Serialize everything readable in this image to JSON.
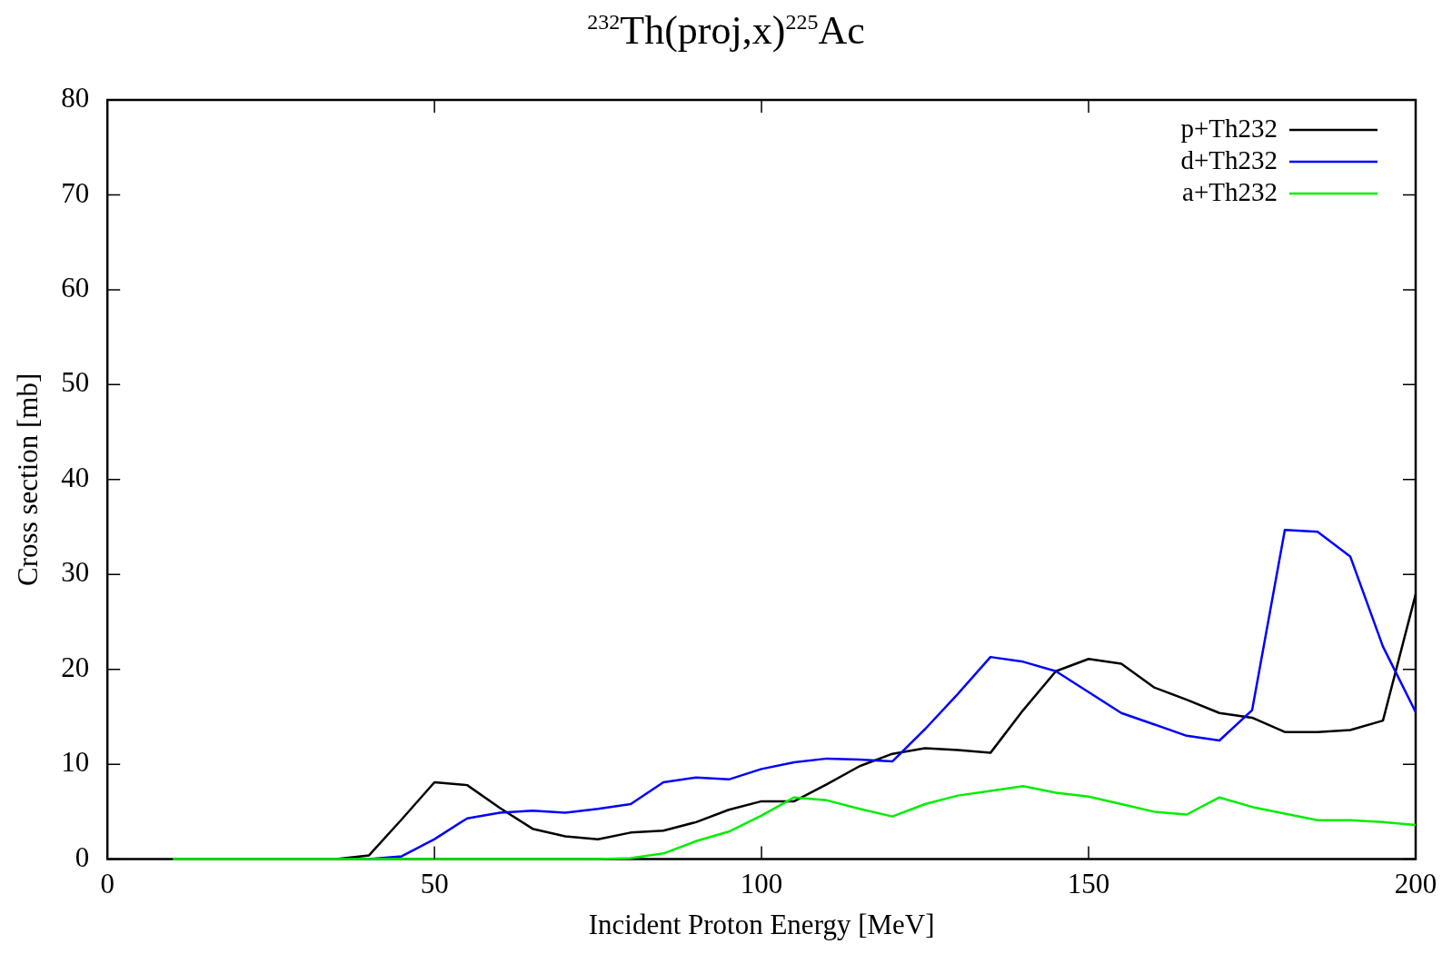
{
  "chart_data": {
    "type": "line",
    "title": "$^{232}$Th(proj,x)$^{225}$Ac",
    "xlabel": "Incident Proton Energy [MeV]",
    "ylabel": "Cross section [mb]",
    "x": [
      10,
      15,
      20,
      25,
      30,
      35,
      40,
      45,
      50,
      55,
      60,
      65,
      70,
      75,
      80,
      85,
      90,
      95,
      100,
      105,
      110,
      115,
      120,
      125,
      130,
      135,
      140,
      145,
      150,
      155,
      160,
      165,
      170,
      175,
      180,
      185,
      190,
      195,
      200
    ],
    "series": [
      {
        "name": "p+Th232",
        "color": "#000000",
        "values": [
          null,
          null,
          null,
          null,
          null,
          0,
          0.4,
          4.2,
          8.1,
          7.8,
          5.4,
          3.2,
          2.4,
          2.1,
          2.8,
          3.0,
          3.9,
          5.2,
          6.1,
          6.1,
          7.9,
          9.8,
          11.1,
          11.7,
          11.5,
          11.2,
          15.7,
          19.8,
          21.1,
          20.6,
          18.1,
          16.8,
          15.4,
          14.9,
          13.4,
          13.4,
          13.6,
          14.6,
          27.9
        ]
      },
      {
        "name": "d+Th232",
        "color": "#0000ff",
        "values": [
          null,
          null,
          null,
          null,
          null,
          null,
          0,
          0.3,
          2.1,
          4.3,
          4.9,
          5.1,
          4.9,
          5.3,
          5.8,
          8.1,
          8.6,
          8.4,
          9.5,
          10.2,
          10.6,
          10.5,
          10.3,
          13.7,
          17.4,
          21.3,
          20.8,
          19.8,
          17.6,
          15.4,
          14.2,
          13.0,
          12.5,
          15.7,
          34.7,
          34.5,
          31.9,
          22.4,
          15.5
        ]
      },
      {
        "name": "a+Th232",
        "color": "#00ee00",
        "values": [
          0,
          0,
          0,
          0,
          0,
          0,
          0,
          0,
          0,
          0,
          0,
          0,
          0,
          0,
          0.1,
          0.6,
          1.9,
          2.9,
          4.6,
          6.5,
          6.2,
          5.3,
          4.5,
          5.8,
          6.7,
          7.2,
          7.7,
          7.0,
          6.6,
          5.8,
          5.0,
          4.7,
          6.5,
          5.5,
          4.8,
          4.1,
          4.1,
          3.9,
          3.6
        ]
      }
    ],
    "xlim": [
      0,
      200
    ],
    "xticks": [
      0,
      50,
      100,
      150,
      200
    ],
    "ylim": [
      0,
      80
    ],
    "yticks": [
      0,
      10,
      20,
      30,
      40,
      50,
      60,
      70,
      80
    ],
    "grid": false,
    "legend": "top right",
    "marker": "none",
    "line_style": "solid"
  }
}
